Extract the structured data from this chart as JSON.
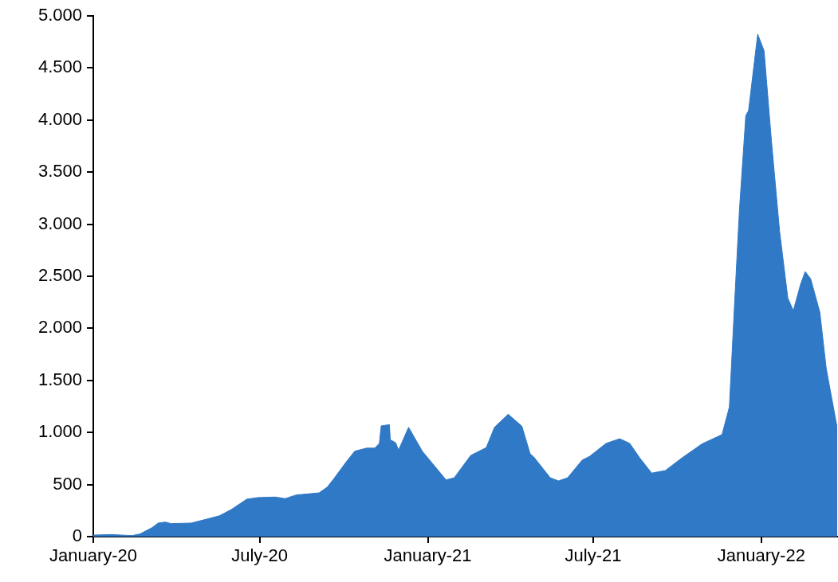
{
  "chart_data": {
    "type": "area",
    "x": [
      "2020-01-01",
      "2020-01-21",
      "2020-02-12",
      "2020-02-21",
      "2020-03-05",
      "2020-03-12",
      "2020-03-20",
      "2020-03-26",
      "2020-04-17",
      "2020-05-05",
      "2020-05-18",
      "2020-05-31",
      "2020-06-17",
      "2020-06-29",
      "2020-07-18",
      "2020-07-29",
      "2020-08-10",
      "2020-09-04",
      "2020-09-13",
      "2020-09-21",
      "2020-10-04",
      "2020-10-13",
      "2020-10-26",
      "2020-11-04",
      "2020-11-09",
      "2020-11-11",
      "2020-11-20",
      "2020-11-21",
      "2020-11-27",
      "2020-11-30",
      "2020-12-11",
      "2020-12-26",
      "2021-01-21",
      "2021-01-30",
      "2021-02-17",
      "2021-03-06",
      "2021-03-15",
      "2021-03-30",
      "2021-04-14",
      "2021-04-23",
      "2021-04-27",
      "2021-05-15",
      "2021-05-24",
      "2021-06-03",
      "2021-06-19",
      "2021-06-27",
      "2021-07-15",
      "2021-07-30",
      "2021-08-10",
      "2021-08-21",
      "2021-09-03",
      "2021-09-18",
      "2021-10-06",
      "2021-10-28",
      "2021-11-19",
      "2021-11-27",
      "2021-12-03",
      "2021-12-08",
      "2021-12-15",
      "2021-12-18",
      "2021-12-28",
      "2022-01-04",
      "2022-01-12",
      "2022-01-21",
      "2022-01-30",
      "2022-02-05",
      "2022-02-13",
      "2022-02-18",
      "2022-02-24",
      "2022-03-06",
      "2022-03-13",
      "2022-03-25"
    ],
    "series": [
      {
        "color": "#3079c6",
        "values": [
          15,
          20,
          10,
          25,
          85,
          130,
          140,
          125,
          130,
          170,
          200,
          260,
          360,
          375,
          380,
          365,
          400,
          420,
          475,
          565,
          720,
          820,
          850,
          850,
          895,
          1063,
          1075,
          930,
          900,
          830,
          1050,
          820,
          545,
          565,
          780,
          855,
          1050,
          1175,
          1060,
          795,
          765,
          565,
          535,
          565,
          735,
          770,
          895,
          940,
          895,
          755,
          610,
          635,
          755,
          890,
          980,
          1245,
          2290,
          3135,
          4045,
          4090,
          4825,
          4665,
          3805,
          2930,
          2290,
          2170,
          2425,
          2545,
          2475,
          2155,
          1615,
          1045
        ]
      }
    ],
    "xlim": [
      "2020-01-01",
      "2022-03-25"
    ],
    "xticks": [
      {
        "value": "2020-01-01",
        "label": "January-20"
      },
      {
        "value": "2020-07-01",
        "label": "July-20"
      },
      {
        "value": "2021-01-01",
        "label": "January-21"
      },
      {
        "value": "2021-07-01",
        "label": "July-21"
      },
      {
        "value": "2022-01-01",
        "label": "January-22"
      }
    ],
    "ylim": [
      0,
      5000
    ],
    "yticks": [
      0,
      500,
      {
        "value": 1000,
        "label": "1.000"
      },
      {
        "value": 1500,
        "label": "1.500"
      },
      {
        "value": 2000,
        "label": "2.000"
      },
      {
        "value": 2500,
        "label": "2.500"
      },
      {
        "value": 3000,
        "label": "3.000"
      },
      {
        "value": 3500,
        "label": "3.500"
      },
      {
        "value": 4000,
        "label": "4.000"
      },
      {
        "value": 4500,
        "label": "4.500"
      },
      {
        "value": 5000,
        "label": "5.000"
      }
    ],
    "grid": false,
    "legend": false
  }
}
